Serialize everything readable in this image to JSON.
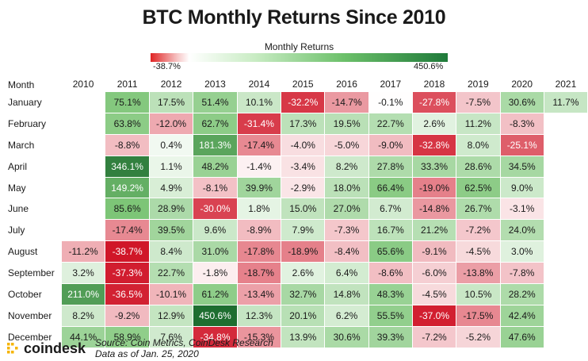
{
  "chart_data": {
    "type": "heatmap",
    "title": "BTC Monthly Returns Since 2010",
    "legend": {
      "title": "Monthly Returns",
      "min_label": "-38.7%",
      "max_label": "450.6%",
      "min": -38.7,
      "max": 450.6
    },
    "row_header": "Month",
    "columns": [
      "2010",
      "2011",
      "2012",
      "2013",
      "2014",
      "2015",
      "2016",
      "2017",
      "2018",
      "2019",
      "2020",
      "2021"
    ],
    "rows": [
      {
        "month": "January",
        "values": [
          null,
          75.1,
          17.5,
          51.4,
          10.1,
          -32.2,
          -14.7,
          -0.1,
          -27.8,
          -7.5,
          30.6,
          11.7
        ]
      },
      {
        "month": "February",
        "values": [
          null,
          63.8,
          -12.0,
          62.7,
          -31.4,
          17.3,
          19.5,
          22.7,
          2.6,
          11.2,
          -8.3,
          null
        ]
      },
      {
        "month": "March",
        "values": [
          null,
          -8.8,
          0.4,
          181.3,
          -17.4,
          -4.0,
          -5.0,
          -9.0,
          -32.8,
          8.0,
          -25.1,
          null
        ]
      },
      {
        "month": "April",
        "values": [
          null,
          346.1,
          1.1,
          48.2,
          -1.4,
          -3.4,
          8.2,
          27.8,
          33.3,
          28.6,
          34.5,
          null
        ]
      },
      {
        "month": "May",
        "values": [
          null,
          149.2,
          4.9,
          -8.1,
          39.9,
          -2.9,
          18.0,
          66.4,
          -19.0,
          62.5,
          9.0,
          null
        ]
      },
      {
        "month": "June",
        "values": [
          null,
          85.6,
          28.9,
          -30.0,
          1.8,
          15.0,
          27.0,
          6.7,
          -14.8,
          26.7,
          -3.1,
          null
        ]
      },
      {
        "month": "July",
        "values": [
          null,
          -17.4,
          39.5,
          9.6,
          -8.9,
          7.9,
          -7.3,
          16.7,
          21.2,
          -7.2,
          24.0,
          null
        ]
      },
      {
        "month": "August",
        "values": [
          -11.2,
          -38.7,
          8.4,
          31.0,
          -17.8,
          -18.9,
          -8.4,
          65.6,
          -9.1,
          -4.5,
          3.0,
          null
        ]
      },
      {
        "month": "September",
        "values": [
          3.2,
          -37.3,
          22.7,
          -1.8,
          -18.7,
          2.6,
          6.4,
          -8.6,
          -6.0,
          -13.8,
          -7.8,
          null
        ]
      },
      {
        "month": "October",
        "values": [
          211.0,
          -36.5,
          -10.1,
          61.2,
          -13.4,
          32.7,
          14.8,
          48.3,
          -4.5,
          10.5,
          28.2,
          null
        ]
      },
      {
        "month": "November",
        "values": [
          8.2,
          -9.2,
          12.9,
          450.6,
          12.3,
          20.1,
          6.2,
          55.5,
          -37.0,
          -17.5,
          42.4,
          null
        ]
      },
      {
        "month": "December",
        "values": [
          44.1,
          58.9,
          7.6,
          -34.8,
          -15.3,
          13.9,
          30.6,
          39.3,
          -7.2,
          -5.2,
          47.6,
          null
        ]
      }
    ]
  },
  "footer": {
    "logo_text": "coindesk",
    "source_line1": "Source: Coin Metrics, CoinDesk Research",
    "source_line2": "Data as of Jan. 25, 2020"
  }
}
